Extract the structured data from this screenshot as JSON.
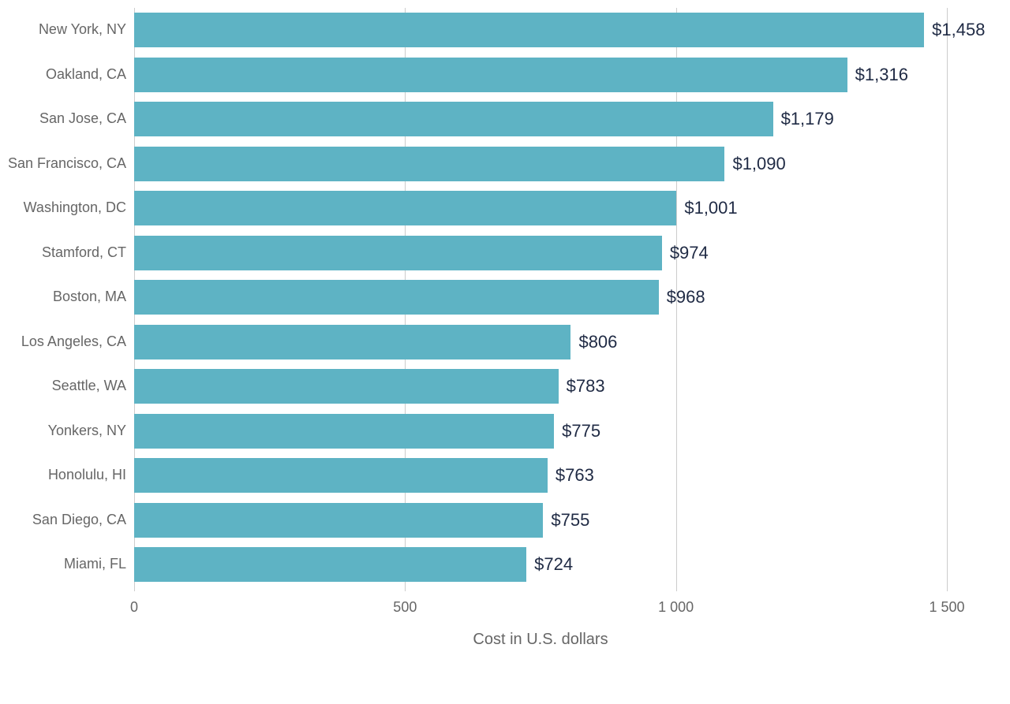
{
  "chart": {
    "type": "bar-horizontal",
    "background_color": "#ffffff",
    "bar_color": "#5eb3c4",
    "grid_color": "#cccccc",
    "text_color": "#1f2a44",
    "value_label_color": "#1f2a44",
    "axis_label_color": "#666666",
    "value_fontsize": 22,
    "category_fontsize": 18,
    "tick_fontsize": 18,
    "axis_title_fontsize": 20,
    "x_axis_title": "Cost in U.S. dollars",
    "x_min": 0,
    "x_max": 1500,
    "x_ticks": [
      0,
      500,
      1000,
      1500
    ],
    "x_tick_labels": [
      "0",
      "500",
      "1 000",
      "1 500"
    ],
    "bar_height_pct": 0.78,
    "row_pitch": 56.5,
    "bars": [
      {
        "category": "New York, NY",
        "value": 1458,
        "label": "$1,458"
      },
      {
        "category": "Oakland, CA",
        "value": 1316,
        "label": "$1,316"
      },
      {
        "category": "San Jose, CA",
        "value": 1179,
        "label": "$1,179"
      },
      {
        "category": "San Francisco, CA",
        "value": 1090,
        "label": "$1,090"
      },
      {
        "category": "Washington, DC",
        "value": 1001,
        "label": "$1,001"
      },
      {
        "category": "Stamford, CT",
        "value": 974,
        "label": "$974"
      },
      {
        "category": "Boston, MA",
        "value": 968,
        "label": "$968"
      },
      {
        "category": "Los Angeles, CA",
        "value": 806,
        "label": "$806"
      },
      {
        "category": "Seattle, WA",
        "value": 783,
        "label": "$783"
      },
      {
        "category": "Yonkers, NY",
        "value": 775,
        "label": "$775"
      },
      {
        "category": "Honolulu, HI",
        "value": 763,
        "label": "$763"
      },
      {
        "category": "San Diego, CA",
        "value": 755,
        "label": "$755"
      },
      {
        "category": "Miami, FL",
        "value": 724,
        "label": "$724"
      }
    ]
  }
}
